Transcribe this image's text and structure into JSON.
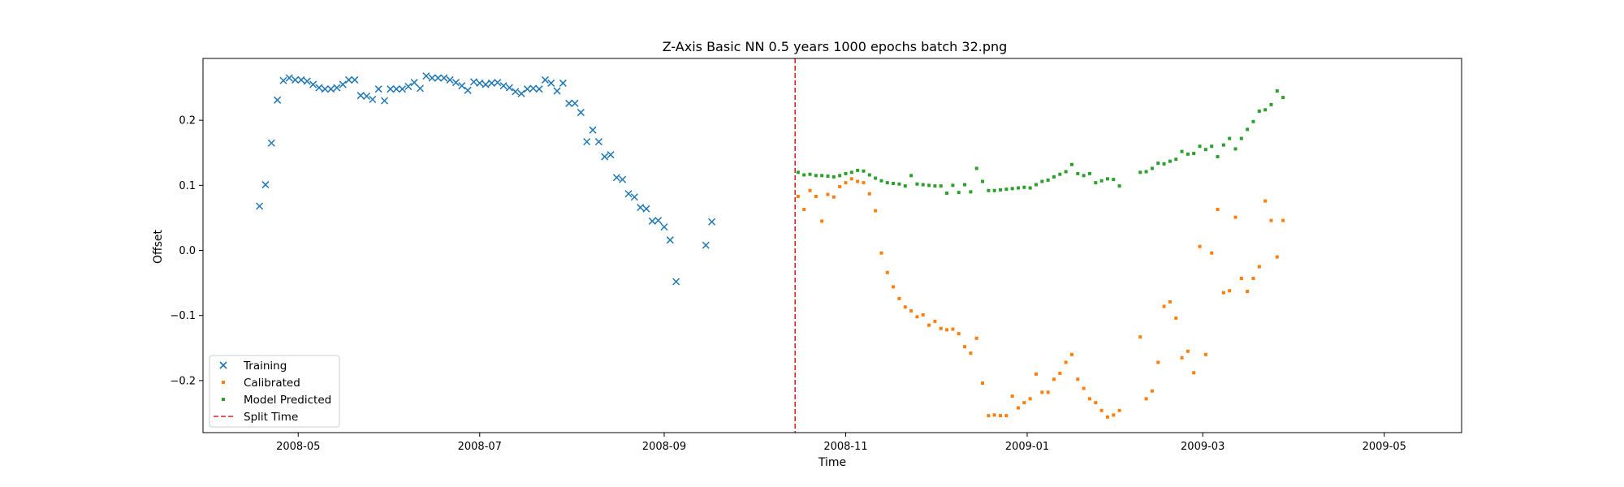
{
  "chart_data": {
    "type": "scatter",
    "title": "Z-Axis Basic NN 0.5 years 1000 epochs batch 32.png",
    "xlabel": "Time",
    "ylabel": "Offset",
    "xlim": [
      "2008-03-30",
      "2009-05-27"
    ],
    "ylim": [
      -0.28,
      0.295
    ],
    "x_ticks": [
      "2008-05-01",
      "2008-07-01",
      "2008-09-01",
      "2008-11-01",
      "2009-01-01",
      "2009-03-01",
      "2009-05-01"
    ],
    "x_tick_labels": [
      "2008-05",
      "2008-07",
      "2008-09",
      "2008-11",
      "2009-01",
      "2009-03",
      "2009-05"
    ],
    "y_ticks": [
      0.2,
      0.1,
      0.0,
      -0.1,
      -0.2
    ],
    "y_tick_labels": [
      "0.2",
      "0.1",
      "0.0",
      "−0.1",
      "−0.2"
    ],
    "grid": false,
    "legend_position": "lower-left",
    "split_time": {
      "name": "Split Time",
      "x": "2008-10-15",
      "color": "#d62728",
      "style": "dashed"
    },
    "series": [
      {
        "name": "Training",
        "marker": "x",
        "color": "#1f77b4",
        "points": [
          [
            "2008-04-18",
            0.068
          ],
          [
            "2008-04-20",
            0.101
          ],
          [
            "2008-04-22",
            0.165
          ],
          [
            "2008-04-24",
            0.231
          ],
          [
            "2008-04-26",
            0.261
          ],
          [
            "2008-04-28",
            0.265
          ],
          [
            "2008-04-30",
            0.262
          ],
          [
            "2008-05-02",
            0.262
          ],
          [
            "2008-05-04",
            0.26
          ],
          [
            "2008-05-06",
            0.255
          ],
          [
            "2008-05-08",
            0.25
          ],
          [
            "2008-05-10",
            0.248
          ],
          [
            "2008-05-12",
            0.248
          ],
          [
            "2008-05-14",
            0.25
          ],
          [
            "2008-05-16",
            0.255
          ],
          [
            "2008-05-18",
            0.262
          ],
          [
            "2008-05-20",
            0.262
          ],
          [
            "2008-05-22",
            0.238
          ],
          [
            "2008-05-24",
            0.237
          ],
          [
            "2008-05-26",
            0.232
          ],
          [
            "2008-05-28",
            0.248
          ],
          [
            "2008-05-30",
            0.23
          ],
          [
            "2008-06-01",
            0.248
          ],
          [
            "2008-06-03",
            0.248
          ],
          [
            "2008-06-05",
            0.248
          ],
          [
            "2008-06-07",
            0.252
          ],
          [
            "2008-06-09",
            0.258
          ],
          [
            "2008-06-11",
            0.249
          ],
          [
            "2008-06-13",
            0.268
          ],
          [
            "2008-06-15",
            0.265
          ],
          [
            "2008-06-17",
            0.265
          ],
          [
            "2008-06-19",
            0.265
          ],
          [
            "2008-06-21",
            0.262
          ],
          [
            "2008-06-23",
            0.258
          ],
          [
            "2008-06-25",
            0.253
          ],
          [
            "2008-06-27",
            0.246
          ],
          [
            "2008-06-29",
            0.259
          ],
          [
            "2008-07-01",
            0.257
          ],
          [
            "2008-07-03",
            0.255
          ],
          [
            "2008-07-05",
            0.257
          ],
          [
            "2008-07-07",
            0.258
          ],
          [
            "2008-07-09",
            0.253
          ],
          [
            "2008-07-11",
            0.25
          ],
          [
            "2008-07-13",
            0.244
          ],
          [
            "2008-07-15",
            0.241
          ],
          [
            "2008-07-17",
            0.248
          ],
          [
            "2008-07-19",
            0.249
          ],
          [
            "2008-07-21",
            0.248
          ],
          [
            "2008-07-23",
            0.262
          ],
          [
            "2008-07-25",
            0.257
          ],
          [
            "2008-07-27",
            0.245
          ],
          [
            "2008-07-29",
            0.257
          ],
          [
            "2008-07-31",
            0.226
          ],
          [
            "2008-08-02",
            0.226
          ],
          [
            "2008-08-04",
            0.212
          ],
          [
            "2008-08-06",
            0.167
          ],
          [
            "2008-08-08",
            0.185
          ],
          [
            "2008-08-10",
            0.167
          ],
          [
            "2008-08-12",
            0.144
          ],
          [
            "2008-08-14",
            0.147
          ],
          [
            "2008-08-16",
            0.112
          ],
          [
            "2008-08-18",
            0.109
          ],
          [
            "2008-08-20",
            0.087
          ],
          [
            "2008-08-22",
            0.082
          ],
          [
            "2008-08-24",
            0.066
          ],
          [
            "2008-08-26",
            0.064
          ],
          [
            "2008-08-28",
            0.045
          ],
          [
            "2008-08-30",
            0.046
          ],
          [
            "2008-09-01",
            0.036
          ],
          [
            "2008-09-03",
            0.016
          ],
          [
            "2008-09-05",
            -0.048
          ],
          [
            "2008-09-15",
            0.008
          ],
          [
            "2008-09-17",
            0.044
          ]
        ]
      },
      {
        "name": "Calibrated",
        "marker": "square",
        "color": "#ff7f0e",
        "points": [
          [
            "2008-10-16",
            0.083
          ],
          [
            "2008-10-18",
            0.063
          ],
          [
            "2008-10-20",
            0.092
          ],
          [
            "2008-10-22",
            0.083
          ],
          [
            "2008-10-24",
            0.045
          ],
          [
            "2008-10-26",
            0.086
          ],
          [
            "2008-10-28",
            0.082
          ],
          [
            "2008-10-30",
            0.098
          ],
          [
            "2008-11-01",
            0.104
          ],
          [
            "2008-11-03",
            0.11
          ],
          [
            "2008-11-05",
            0.106
          ],
          [
            "2008-11-07",
            0.104
          ],
          [
            "2008-11-09",
            0.087
          ],
          [
            "2008-11-11",
            0.061
          ],
          [
            "2008-11-13",
            -0.004
          ],
          [
            "2008-11-15",
            -0.034
          ],
          [
            "2008-11-17",
            -0.056
          ],
          [
            "2008-11-19",
            -0.074
          ],
          [
            "2008-11-21",
            -0.087
          ],
          [
            "2008-11-23",
            -0.093
          ],
          [
            "2008-11-25",
            -0.102
          ],
          [
            "2008-11-27",
            -0.099
          ],
          [
            "2008-11-29",
            -0.115
          ],
          [
            "2008-12-01",
            -0.109
          ],
          [
            "2008-12-03",
            -0.12
          ],
          [
            "2008-12-05",
            -0.122
          ],
          [
            "2008-12-07",
            -0.121
          ],
          [
            "2008-12-09",
            -0.128
          ],
          [
            "2008-12-11",
            -0.148
          ],
          [
            "2008-12-13",
            -0.158
          ],
          [
            "2008-12-15",
            -0.135
          ],
          [
            "2008-12-17",
            -0.204
          ],
          [
            "2008-12-19",
            -0.254
          ],
          [
            "2008-12-21",
            -0.253
          ],
          [
            "2008-12-23",
            -0.254
          ],
          [
            "2008-12-25",
            -0.254
          ],
          [
            "2008-12-27",
            -0.224
          ],
          [
            "2008-12-29",
            -0.242
          ],
          [
            "2008-12-31",
            -0.234
          ],
          [
            "2009-01-02",
            -0.228
          ],
          [
            "2009-01-04",
            -0.19
          ],
          [
            "2009-01-06",
            -0.218
          ],
          [
            "2009-01-08",
            -0.218
          ],
          [
            "2009-01-10",
            -0.198
          ],
          [
            "2009-01-12",
            -0.189
          ],
          [
            "2009-01-14",
            -0.172
          ],
          [
            "2009-01-16",
            -0.16
          ],
          [
            "2009-01-18",
            -0.198
          ],
          [
            "2009-01-20",
            -0.212
          ],
          [
            "2009-01-22",
            -0.228
          ],
          [
            "2009-01-24",
            -0.234
          ],
          [
            "2009-01-26",
            -0.246
          ],
          [
            "2009-01-28",
            -0.256
          ],
          [
            "2009-01-30",
            -0.253
          ],
          [
            "2009-02-01",
            -0.246
          ],
          [
            "2009-02-08",
            -0.133
          ],
          [
            "2009-02-10",
            -0.228
          ],
          [
            "2009-02-12",
            -0.216
          ],
          [
            "2009-02-14",
            -0.172
          ],
          [
            "2009-02-16",
            -0.086
          ],
          [
            "2009-02-18",
            -0.079
          ],
          [
            "2009-02-20",
            -0.104
          ],
          [
            "2009-02-22",
            -0.165
          ],
          [
            "2009-02-24",
            -0.155
          ],
          [
            "2009-02-26",
            -0.188
          ],
          [
            "2009-02-28",
            0.006
          ],
          [
            "2009-03-02",
            -0.16
          ],
          [
            "2009-03-04",
            -0.004
          ],
          [
            "2009-03-06",
            0.063
          ],
          [
            "2009-03-08",
            -0.065
          ],
          [
            "2009-03-10",
            -0.062
          ],
          [
            "2009-03-12",
            0.051
          ],
          [
            "2009-03-14",
            -0.043
          ],
          [
            "2009-03-16",
            -0.063
          ],
          [
            "2009-03-18",
            -0.043
          ],
          [
            "2009-03-20",
            -0.025
          ],
          [
            "2009-03-22",
            0.076
          ],
          [
            "2009-03-24",
            0.046
          ],
          [
            "2009-03-26",
            -0.01
          ],
          [
            "2009-03-28",
            0.046
          ]
        ]
      },
      {
        "name": "Model Predicted",
        "marker": "square",
        "color": "#2ca02c",
        "points": [
          [
            "2008-10-16",
            0.12
          ],
          [
            "2008-10-18",
            0.116
          ],
          [
            "2008-10-20",
            0.117
          ],
          [
            "2008-10-22",
            0.115
          ],
          [
            "2008-10-24",
            0.115
          ],
          [
            "2008-10-26",
            0.114
          ],
          [
            "2008-10-28",
            0.113
          ],
          [
            "2008-10-30",
            0.115
          ],
          [
            "2008-11-01",
            0.118
          ],
          [
            "2008-11-03",
            0.12
          ],
          [
            "2008-11-05",
            0.123
          ],
          [
            "2008-11-07",
            0.122
          ],
          [
            "2008-11-09",
            0.116
          ],
          [
            "2008-11-11",
            0.111
          ],
          [
            "2008-11-13",
            0.107
          ],
          [
            "2008-11-15",
            0.104
          ],
          [
            "2008-11-17",
            0.103
          ],
          [
            "2008-11-19",
            0.102
          ],
          [
            "2008-11-21",
            0.099
          ],
          [
            "2008-11-23",
            0.115
          ],
          [
            "2008-11-25",
            0.102
          ],
          [
            "2008-11-27",
            0.101
          ],
          [
            "2008-11-29",
            0.1
          ],
          [
            "2008-12-01",
            0.099
          ],
          [
            "2008-12-03",
            0.099
          ],
          [
            "2008-12-05",
            0.088
          ],
          [
            "2008-12-07",
            0.1
          ],
          [
            "2008-12-09",
            0.089
          ],
          [
            "2008-12-11",
            0.101
          ],
          [
            "2008-12-13",
            0.09
          ],
          [
            "2008-12-15",
            0.126
          ],
          [
            "2008-12-17",
            0.106
          ],
          [
            "2008-12-19",
            0.092
          ],
          [
            "2008-12-21",
            0.092
          ],
          [
            "2008-12-23",
            0.093
          ],
          [
            "2008-12-25",
            0.094
          ],
          [
            "2008-12-27",
            0.095
          ],
          [
            "2008-12-29",
            0.096
          ],
          [
            "2008-12-31",
            0.097
          ],
          [
            "2009-01-02",
            0.096
          ],
          [
            "2009-01-04",
            0.101
          ],
          [
            "2009-01-06",
            0.106
          ],
          [
            "2009-01-08",
            0.108
          ],
          [
            "2009-01-10",
            0.113
          ],
          [
            "2009-01-12",
            0.117
          ],
          [
            "2009-01-14",
            0.121
          ],
          [
            "2009-01-16",
            0.132
          ],
          [
            "2009-01-18",
            0.118
          ],
          [
            "2009-01-20",
            0.115
          ],
          [
            "2009-01-22",
            0.118
          ],
          [
            "2009-01-24",
            0.104
          ],
          [
            "2009-01-26",
            0.107
          ],
          [
            "2009-01-28",
            0.11
          ],
          [
            "2009-01-30",
            0.109
          ],
          [
            "2009-02-01",
            0.099
          ],
          [
            "2009-02-08",
            0.12
          ],
          [
            "2009-02-10",
            0.121
          ],
          [
            "2009-02-12",
            0.126
          ],
          [
            "2009-02-14",
            0.134
          ],
          [
            "2009-02-16",
            0.133
          ],
          [
            "2009-02-18",
            0.137
          ],
          [
            "2009-02-20",
            0.14
          ],
          [
            "2009-02-22",
            0.152
          ],
          [
            "2009-02-24",
            0.148
          ],
          [
            "2009-02-26",
            0.149
          ],
          [
            "2009-02-28",
            0.16
          ],
          [
            "2009-03-02",
            0.155
          ],
          [
            "2009-03-04",
            0.16
          ],
          [
            "2009-03-06",
            0.144
          ],
          [
            "2009-03-08",
            0.162
          ],
          [
            "2009-03-10",
            0.172
          ],
          [
            "2009-03-12",
            0.156
          ],
          [
            "2009-03-14",
            0.172
          ],
          [
            "2009-03-16",
            0.186
          ],
          [
            "2009-03-18",
            0.198
          ],
          [
            "2009-03-20",
            0.214
          ],
          [
            "2009-03-22",
            0.216
          ],
          [
            "2009-03-24",
            0.224
          ],
          [
            "2009-03-26",
            0.245
          ],
          [
            "2009-03-28",
            0.235
          ]
        ]
      }
    ]
  }
}
